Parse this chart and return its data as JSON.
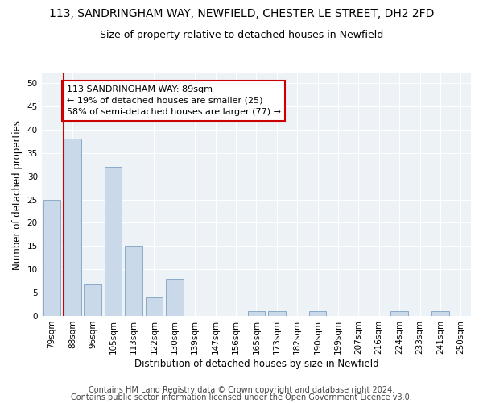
{
  "title": "113, SANDRINGHAM WAY, NEWFIELD, CHESTER LE STREET, DH2 2FD",
  "subtitle": "Size of property relative to detached houses in Newfield",
  "xlabel": "Distribution of detached houses by size in Newfield",
  "ylabel": "Number of detached properties",
  "categories": [
    "79sqm",
    "88sqm",
    "96sqm",
    "105sqm",
    "113sqm",
    "122sqm",
    "130sqm",
    "139sqm",
    "147sqm",
    "156sqm",
    "165sqm",
    "173sqm",
    "182sqm",
    "190sqm",
    "199sqm",
    "207sqm",
    "216sqm",
    "224sqm",
    "233sqm",
    "241sqm",
    "250sqm"
  ],
  "values": [
    25,
    38,
    7,
    32,
    15,
    4,
    8,
    0,
    0,
    0,
    1,
    1,
    0,
    1,
    0,
    0,
    0,
    1,
    0,
    1,
    0
  ],
  "bar_color": "#c9d9ea",
  "bar_edge_color": "#8aaac8",
  "property_line_color": "#cc0000",
  "property_line_index": 1,
  "annotation_line1": "113 SANDRINGHAM WAY: 89sqm",
  "annotation_line2": "← 19% of detached houses are smaller (25)",
  "annotation_line3": "58% of semi-detached houses are larger (77) →",
  "annotation_box_color": "#ffffff",
  "annotation_box_edge": "#cc0000",
  "ylim": [
    0,
    52
  ],
  "yticks": [
    0,
    5,
    10,
    15,
    20,
    25,
    30,
    35,
    40,
    45,
    50
  ],
  "footer1": "Contains HM Land Registry data © Crown copyright and database right 2024.",
  "footer2": "Contains public sector information licensed under the Open Government Licence v3.0.",
  "fig_facecolor": "#ffffff",
  "plot_facecolor": "#edf2f7",
  "grid_color": "#ffffff",
  "title_fontsize": 10,
  "subtitle_fontsize": 9,
  "axis_label_fontsize": 8.5,
  "tick_fontsize": 7.5,
  "annotation_fontsize": 8,
  "footer_fontsize": 7
}
